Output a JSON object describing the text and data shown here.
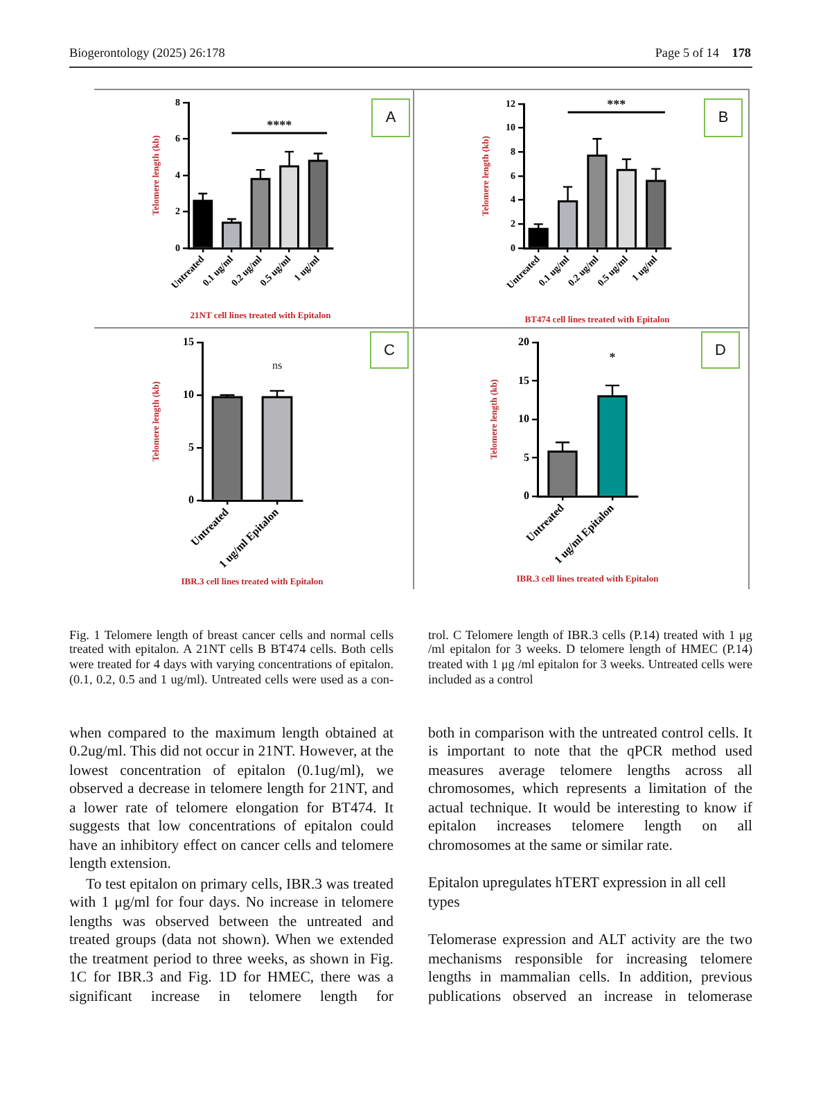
{
  "chart_data": [
    {
      "type": "bar",
      "xlabel": "21NT cell lines treated with Epitalon",
      "ylabel": "Telomere length (kb)",
      "categories": [
        "Untreated",
        "0.1 ug/ml",
        "0.2 ug/ml",
        "0.5 ug/ml",
        "1 ug/ml"
      ],
      "values": [
        2.6,
        1.4,
        3.8,
        4.5,
        4.8
      ],
      "colors": [
        "#000000",
        "#b4b4bc",
        "#8c8c8c",
        "#dcdcdc",
        "#6e6e6e"
      ],
      "errors": [
        [
          2.6,
          3.0
        ],
        [
          1.4,
          1.6
        ],
        [
          3.8,
          4.3
        ],
        [
          4.5,
          5.3
        ],
        [
          4.8,
          5.2
        ]
      ],
      "ylim": [
        0,
        8
      ],
      "yticks": [
        0,
        2,
        4,
        6,
        8
      ],
      "annotations": [
        "A",
        "****"
      ]
    },
    {
      "type": "bar",
      "xlabel": "BT474 cell lines treated with Epitalon",
      "ylabel": "Telomere length (kb)",
      "categories": [
        "Untreated",
        "0.1 ug/ml",
        "0.2 ug/ml",
        "0.5 ug/ml",
        "1 ug/ml"
      ],
      "values": [
        1.6,
        3.9,
        7.7,
        6.5,
        5.6
      ],
      "colors": [
        "#000000",
        "#b4b4bc",
        "#8c8c8c",
        "#dcdcdc",
        "#6e6e6e"
      ],
      "errors": [
        [
          1.6,
          2.0
        ],
        [
          3.9,
          5.1
        ],
        [
          7.7,
          9.1
        ],
        [
          6.5,
          7.4
        ],
        [
          5.6,
          6.6
        ]
      ],
      "ylim": [
        0,
        12
      ],
      "yticks": [
        0,
        2,
        4,
        6,
        8,
        10,
        12
      ],
      "annotations": [
        "B",
        "***"
      ]
    },
    {
      "type": "bar",
      "xlabel": "IBR.3 cell lines treated with Epitalon",
      "ylabel": "Telomere length (kb)",
      "categories": [
        "Untreated",
        "1 ug/ml Epitalon"
      ],
      "values": [
        9.8,
        9.8
      ],
      "colors": [
        "#747474",
        "#b5b5ba"
      ],
      "errors": [
        [
          9.8,
          10.0
        ],
        [
          9.8,
          10.4
        ]
      ],
      "ylim": [
        0,
        15
      ],
      "yticks": [
        0,
        5,
        10,
        15
      ],
      "annotations": [
        "C",
        "ns"
      ]
    },
    {
      "type": "bar",
      "xlabel": "IBR.3 cell lines treated with Epitalon",
      "ylabel": "Telomere length (kb)",
      "categories": [
        "Untreated",
        "1 ug/ml Epitalon"
      ],
      "values": [
        5.8,
        13.0
      ],
      "colors": [
        "#7a7a7a",
        "#009090"
      ],
      "errors": [
        [
          5.8,
          7.0
        ],
        [
          13.0,
          14.4
        ]
      ],
      "ylim": [
        0,
        20
      ],
      "yticks": [
        0,
        5,
        10,
        15,
        20
      ],
      "annotations": [
        "D",
        "*"
      ]
    },
    {
      "type": "other",
      "annotations": [
        "Biogerontology (2025) 26:178",
        "Page 5 of 14",
        "178",
        "Fig. 1 Telomere length of breast cancer cells and normal cells treated with epitalon. A 21NT cells B BT474 cells. Both cells were treated for 4 days with varying concentrations of epitalon. (0.1, 0.2, 0.5 and 1 ug/ml). Untreated cells were used as a con-",
        "trol. C Telomere length of IBR.3 cells (P.14) treated with 1 μg /ml epitalon for 3 weeks. D telomere length of HMEC (P.14) treated with 1 μg /ml epitalon for 3 weeks. Untreated cells were included as a control",
        "when compared to the maximum length obtained at 0.2ug/ml. This did not occur in 21NT. However, at the lowest concentration of epitalon (0.1ug/ml), we observed a decrease in telomere length for 21NT, and a lower rate of telomere elongation for BT474. It suggests that low concentrations of epitalon could have an inhibitory effect on cancer cells and telomere length extension.",
        "To test epitalon on primary cells, IBR.3 was treated with 1 μg/ml for four days. No increase in telomere lengths was observed between the untreated and treated groups (data not shown). When we extended the treatment period to three weeks, as shown in Fig. 1C for IBR.3 and Fig. 1D for HMEC, there was a significant increase in telomere length for",
        "both in comparison with the untreated control cells. It is important to note that the qPCR method used measures average telomere lengths across all chromosomes, which represents a limitation of the actual technique. It would be interesting to know if epitalon increases telomere length on all chromosomes at the same or similar rate.",
        "Epitalon upregulates hTERT expression in all cell types",
        "Telomerase expression and ALT activity are the two mechanisms responsible for increasing telomere lengths in mammalian cells. In addition, previous publications observed an increase in telomerase"
      ]
    }
  ]
}
